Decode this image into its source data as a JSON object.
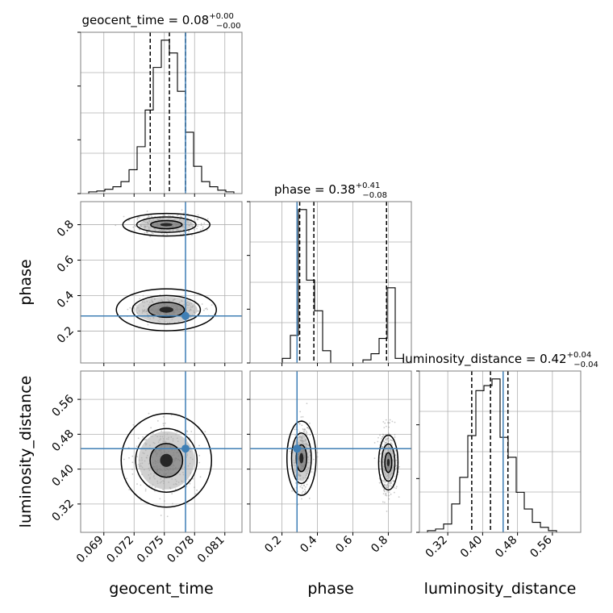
{
  "colors": {
    "truth": "#3f7fb5",
    "hist": "#000000",
    "grid": "#b0b0b0",
    "frame": "#7f7f7f",
    "scatter": "#8a8a8a"
  },
  "chart_data": {
    "type": "corner",
    "parameters": [
      "geocent_time",
      "phase",
      "luminosity_distance"
    ],
    "titles": {
      "geocent_time": {
        "name": "geocent_time",
        "median": "0.08",
        "plus": "+0.00",
        "minus": "−0.00"
      },
      "phase": {
        "name": "phase",
        "median": "0.38",
        "plus": "+0.41",
        "minus": "−0.08"
      },
      "luminosity_distance": {
        "name": "luminosity_distance",
        "median": "0.42",
        "plus": "+0.04",
        "minus": "−0.04"
      }
    },
    "ranges": {
      "geocent_time": [
        0.0667,
        0.0827
      ],
      "phase": [
        0.02,
        0.93
      ],
      "luminosity_distance": [
        0.255,
        0.625
      ]
    },
    "ticks": {
      "geocent_time": [
        0.069,
        0.072,
        0.075,
        0.078,
        0.081
      ],
      "phase": [
        0.2,
        0.4,
        0.6,
        0.8
      ],
      "luminosity_distance": [
        0.32,
        0.4,
        0.48,
        0.56
      ]
    },
    "tick_labels": {
      "geocent_time": [
        "0.069",
        "0.072",
        "0.075",
        "0.078",
        "0.081"
      ],
      "phase": [
        "0.2",
        "0.4",
        "0.6",
        "0.8"
      ],
      "luminosity_distance": [
        "0.32",
        "0.40",
        "0.48",
        "0.56"
      ]
    },
    "truths": {
      "geocent_time": 0.0771,
      "phase": 0.285,
      "luminosity_distance": 0.447
    },
    "quantiles": {
      "geocent_time": [
        0.0736,
        0.0755,
        0.0771
      ],
      "phase": [
        0.3,
        0.38,
        0.79
      ],
      "luminosity_distance": [
        0.375,
        0.418,
        0.458
      ]
    },
    "histograms": {
      "geocent_time": {
        "edges": [
          0.0667,
          0.0675,
          0.0683,
          0.0691,
          0.0699,
          0.0707,
          0.0715,
          0.0723,
          0.0731,
          0.0739,
          0.0747,
          0.0755,
          0.0763,
          0.0771,
          0.0779,
          0.0787,
          0.0795,
          0.0803,
          0.0811,
          0.0819,
          0.0827
        ],
        "counts": [
          0,
          2,
          3,
          5,
          8,
          14,
          28,
          55,
          98,
          148,
          180,
          165,
          120,
          72,
          32,
          14,
          8,
          4,
          2,
          0
        ]
      },
      "phase": {
        "edges": [
          0.02,
          0.0655,
          0.111,
          0.1565,
          0.202,
          0.2475,
          0.293,
          0.3385,
          0.384,
          0.4295,
          0.475,
          0.5205,
          0.566,
          0.6115,
          0.657,
          0.7025,
          0.748,
          0.7935,
          0.839,
          0.8845,
          0.93
        ],
        "counts": [
          0,
          0,
          0,
          0,
          3,
          18,
          100,
          54,
          34,
          8,
          0,
          0,
          0,
          0,
          2,
          6,
          16,
          49,
          3,
          0
        ]
      },
      "luminosity_distance": {
        "edges": [
          0.255,
          0.2735,
          0.292,
          0.3105,
          0.329,
          0.3475,
          0.366,
          0.3845,
          0.403,
          0.4215,
          0.44,
          0.4585,
          0.477,
          0.4955,
          0.514,
          0.5325,
          0.551,
          0.5695,
          0.588,
          0.6065,
          0.625
        ],
        "counts": [
          0,
          1,
          2,
          5,
          17,
          33,
          58,
          85,
          88,
          92,
          57,
          45,
          24,
          14,
          6,
          3,
          1,
          0,
          0,
          0
        ]
      }
    },
    "density_modes": [
      {
        "x": "geocent_time",
        "y": "phase",
        "centers": [
          [
            0.0752,
            0.8
          ],
          [
            0.0752,
            0.32
          ]
        ]
      },
      {
        "x": "geocent_time",
        "y": "luminosity_distance",
        "centers": [
          [
            0.0752,
            0.42
          ]
        ]
      },
      {
        "x": "phase",
        "y": "luminosity_distance",
        "centers": [
          [
            0.31,
            0.425
          ],
          [
            0.8,
            0.415
          ]
        ]
      }
    ],
    "axis_labels": {
      "geocent_time": "geocent_time",
      "phase": "phase",
      "luminosity_distance": "luminosity_distance"
    },
    "grid": true
  }
}
